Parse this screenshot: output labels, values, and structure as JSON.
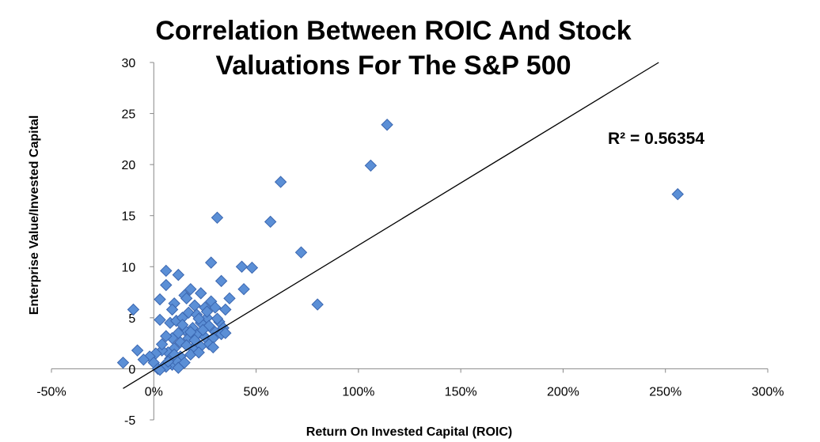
{
  "chart_data": {
    "type": "scatter",
    "title_lines": [
      "Correlation Between ROIC And Stock",
      "Valuations For The S&P 500"
    ],
    "xlabel": "Return On Invested Capital (ROIC)",
    "ylabel": "Enterprise Value/Invested Capital",
    "xlim": [
      -0.5,
      3.0
    ],
    "ylim": [
      -5,
      30
    ],
    "x_ticks": [
      -0.5,
      0,
      0.5,
      1.0,
      1.5,
      2.0,
      2.5,
      3.0
    ],
    "x_tick_labels": [
      "-50%",
      "0%",
      "50%",
      "100%",
      "150%",
      "200%",
      "250%",
      "300%"
    ],
    "y_ticks": [
      -5,
      0,
      5,
      10,
      15,
      20,
      25,
      30
    ],
    "y_tick_labels": [
      "-5",
      "0",
      "5",
      "10",
      "15",
      "20",
      "25",
      "30"
    ],
    "grid": false,
    "legend": "none",
    "trendline": {
      "type": "linear",
      "slope": 12.2,
      "intercept": -0.1,
      "r_squared_label": "R² = 0.56354"
    },
    "marker": {
      "shape": "diamond",
      "color": "#5b8fd6",
      "edge": "#3a66b0"
    },
    "trendline_color": "#000000",
    "series": [
      {
        "values": [
          [
            2.56,
            17.1
          ],
          [
            1.14,
            23.9
          ],
          [
            1.06,
            19.9
          ],
          [
            0.62,
            18.3
          ],
          [
            0.57,
            14.4
          ],
          [
            0.31,
            14.8
          ],
          [
            0.72,
            11.4
          ],
          [
            0.8,
            6.3
          ],
          [
            0.48,
            9.9
          ],
          [
            0.43,
            10.0
          ],
          [
            0.28,
            10.4
          ],
          [
            0.44,
            7.8
          ],
          [
            0.33,
            8.6
          ],
          [
            0.06,
            9.6
          ],
          [
            0.06,
            8.2
          ],
          [
            0.12,
            9.2
          ],
          [
            0.03,
            6.8
          ],
          [
            -0.1,
            5.8
          ],
          [
            0.1,
            6.4
          ],
          [
            0.18,
            7.8
          ],
          [
            0.15,
            7.2
          ],
          [
            0.23,
            7.4
          ],
          [
            0.28,
            6.6
          ],
          [
            0.37,
            6.9
          ],
          [
            0.35,
            5.8
          ],
          [
            0.3,
            6.0
          ],
          [
            0.25,
            6.0
          ],
          [
            0.2,
            6.2
          ],
          [
            0.03,
            4.8
          ],
          [
            0.08,
            4.5
          ],
          [
            0.11,
            4.7
          ],
          [
            0.14,
            5.0
          ],
          [
            0.17,
            5.5
          ],
          [
            0.21,
            5.3
          ],
          [
            0.26,
            5.0
          ],
          [
            0.32,
            4.6
          ],
          [
            0.34,
            4.0
          ],
          [
            0.3,
            3.6
          ],
          [
            0.27,
            4.2
          ],
          [
            0.23,
            4.5
          ],
          [
            0.19,
            4.0
          ],
          [
            0.15,
            3.8
          ],
          [
            0.12,
            3.5
          ],
          [
            0.09,
            3.0
          ],
          [
            0.06,
            3.2
          ],
          [
            0.13,
            2.6
          ],
          [
            0.17,
            3.0
          ],
          [
            0.21,
            3.3
          ],
          [
            0.25,
            3.1
          ],
          [
            0.29,
            3.0
          ],
          [
            0.33,
            3.4
          ],
          [
            0.27,
            2.4
          ],
          [
            0.23,
            2.2
          ],
          [
            0.19,
            2.0
          ],
          [
            0.16,
            2.3
          ],
          [
            0.1,
            2.0
          ],
          [
            0.07,
            1.6
          ],
          [
            0.04,
            1.8
          ],
          [
            0.01,
            1.5
          ],
          [
            -0.02,
            1.2
          ],
          [
            -0.08,
            1.8
          ],
          [
            -0.15,
            0.6
          ],
          [
            -0.05,
            0.9
          ],
          [
            0.0,
            0.6
          ],
          [
            0.05,
            0.3
          ],
          [
            0.02,
            0.0
          ],
          [
            0.09,
            0.4
          ],
          [
            0.13,
            1.2
          ],
          [
            0.18,
            1.4
          ],
          [
            0.22,
            1.6
          ],
          [
            0.11,
            0.8
          ],
          [
            0.15,
            0.6
          ],
          [
            0.08,
            1.0
          ],
          [
            0.06,
            0.2
          ],
          [
            0.03,
            -0.1
          ],
          [
            0.12,
            0.1
          ],
          [
            0.29,
            2.1
          ],
          [
            0.2,
            2.8
          ],
          [
            0.24,
            3.8
          ],
          [
            0.14,
            4.3
          ],
          [
            0.31,
            4.9
          ],
          [
            0.09,
            5.8
          ],
          [
            0.16,
            6.9
          ],
          [
            0.04,
            2.4
          ],
          [
            0.18,
            3.6
          ],
          [
            0.22,
            4.9
          ],
          [
            0.26,
            5.6
          ],
          [
            0.35,
            3.5
          ],
          [
            0.07,
            0.7
          ],
          [
            0.1,
            1.4
          ]
        ]
      }
    ]
  }
}
